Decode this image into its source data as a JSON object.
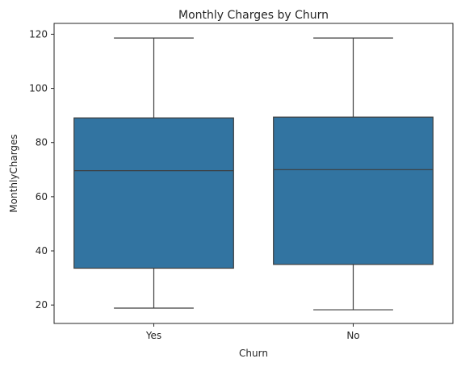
{
  "chart_data": {
    "type": "box",
    "title": "Monthly Charges by Churn",
    "xlabel": "Churn",
    "ylabel": "MonthlyCharges",
    "ylim": [
      13.2,
      124.0
    ],
    "yticks": [
      20,
      40,
      60,
      80,
      100,
      120
    ],
    "categories": [
      "Yes",
      "No"
    ],
    "boxes": [
      {
        "category": "Yes",
        "whisker_low": 18.85,
        "q1": 33.6,
        "median": 69.6,
        "q3": 89.1,
        "whisker_high": 118.6
      },
      {
        "category": "No",
        "whisker_low": 18.25,
        "q1": 35.0,
        "median": 70.0,
        "q3": 89.4,
        "whisker_high": 118.6
      }
    ],
    "grid": false,
    "colors": {
      "box_fill": "#3274a1",
      "line": "#3d3d3d"
    }
  }
}
